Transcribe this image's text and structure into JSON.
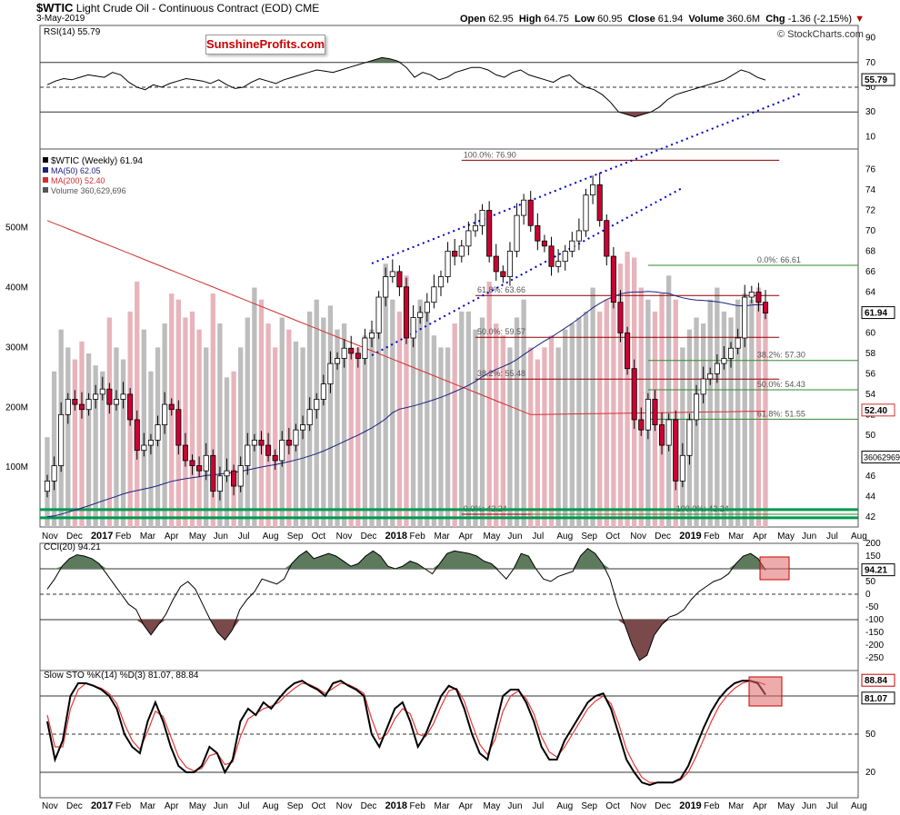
{
  "header": {
    "symbol": "$WTIC",
    "name": "Light Crude Oil - Continuous Contract (EOD)",
    "exchange": "CME",
    "date": "3-May-2019",
    "open_label": "Open",
    "open": "62.95",
    "high_label": "High",
    "high": "64.75",
    "low_label": "Low",
    "low": "60.95",
    "close_label": "Close",
    "close": "61.94",
    "volume_label": "Volume",
    "volume": "360.6M",
    "chg_label": "Chg",
    "chg": "-1.36 (-2.15%)",
    "chg_arrow": "▼",
    "watermark": "© StockCharts.com",
    "brand": "SunshineProfits.com"
  },
  "colors": {
    "up_candle": "#ffffff",
    "down_candle": "#cc0033",
    "ma50": "#1a237e",
    "ma200": "#d32f2f",
    "fib_red": "#8b0000",
    "fib_green": "#2e8b2e",
    "channel": "#0000cc",
    "support": "#00994d",
    "cci_fill_pos": "#5d7a5d",
    "cci_fill_neg": "#7a4a4a",
    "highlight": "#e06666"
  },
  "chart_data": [
    {
      "type": "line",
      "panel": "rsi",
      "title": "RSI(14) 55.79",
      "ylim": [
        0,
        100
      ],
      "y_ticks": [
        "90",
        "70",
        "50",
        "30",
        "10"
      ],
      "reference_lines": [
        70,
        50,
        30
      ],
      "last_value_label": "55.79",
      "series": [
        {
          "values": [
            52,
            55,
            57,
            56,
            58,
            60,
            59,
            58,
            62,
            60,
            54,
            50,
            48,
            52,
            50,
            53,
            55,
            57,
            56,
            55,
            53,
            56,
            52,
            49,
            50,
            54,
            57,
            55,
            53,
            56,
            58,
            60,
            62,
            64,
            63,
            62,
            64,
            66,
            68,
            70,
            72,
            74,
            73,
            71,
            66,
            58,
            62,
            60,
            56,
            58,
            62,
            64,
            66,
            66,
            64,
            60,
            58,
            62,
            64,
            60,
            58,
            56,
            54,
            58,
            60,
            54,
            50,
            48,
            44,
            38,
            30,
            28,
            26,
            28,
            30,
            34,
            40,
            44,
            46,
            48,
            50,
            52,
            54,
            56,
            60,
            64,
            62,
            58,
            55.79
          ]
        }
      ]
    },
    {
      "type": "candlestick",
      "panel": "price",
      "title": "$WTIC (Weekly) 61.94",
      "ylim": [
        41,
        78
      ],
      "y_ticks": [
        "76",
        "74",
        "72",
        "70",
        "68",
        "66",
        "64",
        "62",
        "60",
        "58",
        "56",
        "54",
        "52",
        "50",
        "48",
        "46",
        "44",
        "42"
      ],
      "x_labels": [
        "Nov",
        "Dec",
        "2017",
        "Feb",
        "Mar",
        "Apr",
        "May",
        "Jun",
        "Jul",
        "Aug",
        "Sep",
        "Oct",
        "Nov",
        "Dec",
        "2018",
        "Feb",
        "Mar",
        "Apr",
        "May",
        "Jun",
        "Jul",
        "Aug",
        "Sep",
        "Oct",
        "Nov",
        "Dec",
        "2019",
        "Feb",
        "Mar",
        "Apr",
        "May",
        "Jun",
        "Jul",
        "Aug"
      ],
      "legend": [
        {
          "name": "$WTIC (Weekly) 61.94"
        },
        {
          "name": "MA(50) 62.05"
        },
        {
          "name": "MA(200) 52.40"
        },
        {
          "name": "Volume 360,629,696"
        }
      ],
      "close": [
        45.5,
        47.0,
        52.0,
        53.5,
        53.0,
        52.5,
        53.5,
        54.0,
        54.5,
        53.0,
        53.5,
        54.0,
        51.5,
        48.5,
        49.0,
        49.5,
        51.0,
        53.0,
        52.5,
        49.0,
        47.5,
        47.0,
        46.5,
        48.0,
        44.5,
        46.0,
        46.5,
        45.0,
        47.0,
        49.0,
        49.5,
        49.0,
        48.0,
        47.5,
        49.5,
        49.0,
        50.5,
        51.0,
        52.5,
        53.5,
        55.0,
        57.0,
        57.5,
        58.5,
        58.0,
        57.5,
        59.5,
        60.0,
        63.5,
        65.5,
        66.0,
        64.5,
        59.5,
        61.5,
        62.0,
        63.0,
        64.5,
        65.5,
        68.0,
        67.5,
        68.5,
        70.0,
        70.5,
        72.0,
        67.5,
        66.0,
        65.5,
        68.0,
        71.5,
        73.0,
        70.5,
        69.0,
        68.5,
        66.5,
        67.0,
        68.0,
        69.0,
        70.0,
        73.5,
        74.5,
        71.0,
        67.5,
        63.0,
        60.0,
        56.5,
        51.5,
        50.5,
        53.5,
        51.0,
        49.0,
        51.5,
        45.5,
        48.0,
        51.5,
        54.0,
        55.5,
        56.0,
        57.0,
        57.5,
        58.5,
        59.5,
        63.5,
        64.0,
        63.0,
        61.94
      ],
      "ma50_label": "MA(50) 62.05",
      "ma200_label": "MA(200) 52.40",
      "last_price_label": "61.94",
      "ma200_last_label": "52.40",
      "channel": {
        "lower": {
          "from": [
            47,
            57.8
          ],
          "to": [
            92,
            74.2
          ]
        },
        "upper": {
          "from": [
            47,
            66.8
          ],
          "to": [
            116,
            85.0
          ]
        }
      },
      "fib_retracements_red": [
        {
          "label": "100.0%: 76.90",
          "value": 76.9
        },
        {
          "label": "61.8%: 63.66",
          "value": 63.66
        },
        {
          "label": "50.0%: 59.57",
          "value": 59.57
        },
        {
          "label": "38.2%: 55.48",
          "value": 55.48
        },
        {
          "label": "0.0%: 42.24",
          "value": 42.24
        }
      ],
      "fib_retracements_green": [
        {
          "label": "0.0%: 66.61",
          "value": 66.61
        },
        {
          "label": "38.2%: 57.30",
          "value": 57.3
        },
        {
          "label": "50.0%: 54.43",
          "value": 54.43
        },
        {
          "label": "61.8%: 51.55",
          "value": 51.55
        },
        {
          "label": "100.0%: 42.24",
          "value": 42.24
        }
      ],
      "volume": {
        "y_ticks": [
          "500M",
          "400M",
          "300M",
          "200M",
          "100M"
        ],
        "last_label": "360629696",
        "values": [
          150,
          260,
          330,
          300,
          280,
          310,
          290,
          270,
          260,
          350,
          300,
          280,
          360,
          410,
          330,
          260,
          300,
          340,
          390,
          380,
          350,
          360,
          330,
          300,
          390,
          340,
          250,
          260,
          300,
          350,
          400,
          380,
          340,
          300,
          350,
          330,
          310,
          300,
          360,
          380,
          350,
          370,
          330,
          340,
          290,
          300,
          320,
          330,
          370,
          440,
          380,
          360,
          420,
          350,
          380,
          370,
          320,
          300,
          300,
          340,
          360,
          360,
          330,
          350,
          410,
          340,
          320,
          300,
          350,
          380,
          300,
          280,
          300,
          320,
          300,
          330,
          340,
          350,
          360,
          400,
          360,
          380,
          420,
          440,
          460,
          450,
          400,
          380,
          360,
          390,
          420,
          380,
          300,
          330,
          350,
          340,
          380,
          400,
          360,
          350,
          380,
          390,
          380,
          400,
          360
        ]
      }
    },
    {
      "type": "line",
      "panel": "cci",
      "title": "CCI(20) 94.21",
      "ylim": [
        -300,
        200
      ],
      "y_ticks": [
        "200",
        "150",
        "100",
        "50",
        "0",
        "-50",
        "-100",
        "-150",
        "-200",
        "-250"
      ],
      "reference_lines": [
        100,
        0,
        -100
      ],
      "last_value_label": "94.21",
      "series": [
        {
          "values": [
            20,
            60,
            110,
            140,
            155,
            150,
            140,
            120,
            80,
            40,
            0,
            -40,
            -60,
            -120,
            -160,
            -120,
            -80,
            -20,
            30,
            50,
            20,
            -40,
            -100,
            -150,
            -180,
            -140,
            -60,
            -20,
            10,
            60,
            50,
            40,
            60,
            120,
            150,
            170,
            140,
            150,
            160,
            150,
            130,
            110,
            120,
            150,
            170,
            150,
            110,
            100,
            110,
            130,
            120,
            100,
            80,
            120,
            160,
            170,
            165,
            160,
            150,
            130,
            120,
            90,
            60,
            100,
            160,
            150,
            100,
            60,
            50,
            70,
            80,
            90,
            150,
            180,
            160,
            120,
            60,
            -40,
            -120,
            -200,
            -260,
            -240,
            -160,
            -120,
            -90,
            -80,
            -60,
            -20,
            10,
            30,
            50,
            60,
            80,
            120,
            150,
            160,
            140,
            94.21
          ]
        }
      ]
    },
    {
      "type": "line",
      "panel": "stochastic",
      "title": "Slow STO %K(14) %D(3) 81.07, 88.84",
      "ylim": [
        0,
        100
      ],
      "y_ticks": [
        "80",
        "50",
        "20"
      ],
      "reference_lines": [
        80,
        50,
        20
      ],
      "last_value_labels": [
        "88.84",
        "81.07"
      ],
      "series": [
        {
          "values": [
            60,
            30,
            45,
            80,
            90,
            90,
            88,
            85,
            80,
            70,
            50,
            40,
            35,
            60,
            75,
            60,
            40,
            25,
            20,
            20,
            25,
            40,
            35,
            20,
            30,
            60,
            70,
            65,
            75,
            70,
            78,
            85,
            90,
            92,
            88,
            85,
            80,
            90,
            92,
            88,
            85,
            80,
            50,
            40,
            55,
            70,
            75,
            60,
            40,
            50,
            65,
            80,
            88,
            85,
            70,
            50,
            35,
            30,
            55,
            80,
            85,
            85,
            75,
            60,
            40,
            30,
            30,
            45,
            55,
            65,
            75,
            80,
            82,
            70,
            50,
            30,
            20,
            12,
            10,
            12,
            12,
            12,
            15,
            25,
            40,
            55,
            68,
            78,
            85,
            90,
            92,
            92,
            90,
            81.07
          ]
        },
        {
          "values": [
            65,
            40,
            40,
            70,
            85,
            90,
            88,
            86,
            82,
            74,
            58,
            45,
            38,
            52,
            68,
            64,
            48,
            32,
            24,
            21,
            23,
            33,
            35,
            26,
            28,
            48,
            62,
            66,
            70,
            72,
            75,
            81,
            86,
            90,
            89,
            86,
            82,
            86,
            90,
            89,
            86,
            82,
            62,
            46,
            50,
            62,
            70,
            66,
            50,
            48,
            58,
            72,
            84,
            86,
            76,
            58,
            42,
            34,
            46,
            68,
            80,
            84,
            78,
            66,
            48,
            36,
            32,
            40,
            50,
            60,
            70,
            76,
            80,
            74,
            58,
            38,
            26,
            16,
            12,
            12,
            12,
            12,
            14,
            20,
            32,
            46,
            60,
            72,
            80,
            86,
            90,
            92,
            91,
            88.84
          ]
        }
      ]
    }
  ]
}
